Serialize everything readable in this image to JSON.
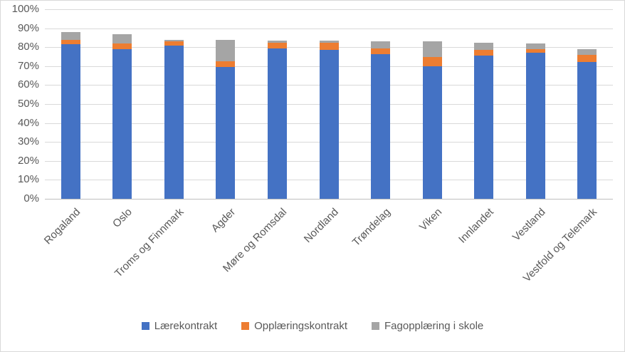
{
  "chart_data": {
    "type": "bar",
    "stacked": true,
    "title": "",
    "xlabel": "",
    "ylabel": "",
    "grid": true,
    "legend_position": "bottom",
    "categories": [
      "Rogaland",
      "Oslo",
      "Troms og Finnmark",
      "Agder",
      "Møre og Romsdal",
      "Nordland",
      "Trøndelag",
      "Viken",
      "Innlandet",
      "Vestland",
      "Vestfold og Telemark"
    ],
    "series": [
      {
        "name": "Lærekontrakt",
        "color": "#4472C4",
        "values": [
          81.5,
          79,
          81,
          69.5,
          79.5,
          78.5,
          76.5,
          70,
          75.5,
          77,
          72
        ]
      },
      {
        "name": "Opplæringskontrakt",
        "color": "#ED7D31",
        "values": [
          2.5,
          3,
          2,
          3,
          3,
          4,
          3,
          5,
          3,
          2,
          4
        ]
      },
      {
        "name": "Fagopplæring i skole",
        "color": "#A5A5A5",
        "values": [
          4,
          5,
          1,
          11.5,
          1,
          1,
          3.5,
          8,
          4,
          3,
          3
        ]
      }
    ],
    "y_axis": {
      "min": 0,
      "max": 100,
      "step": 10,
      "format": "percent",
      "tick_labels": [
        "0%",
        "10%",
        "20%",
        "30%",
        "40%",
        "50%",
        "60%",
        "70%",
        "80%",
        "90%",
        "100%"
      ]
    }
  },
  "colors": {
    "gridline": "#D9D9D9",
    "axis_line": "#BFBFBF",
    "label_text": "#595959",
    "frame_border": "#D9D9D9"
  }
}
